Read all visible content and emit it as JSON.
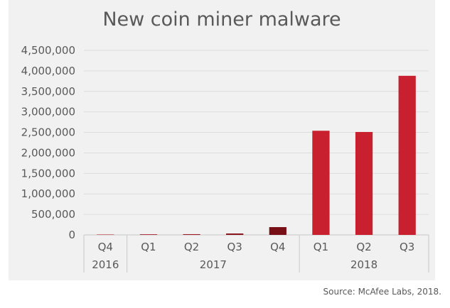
{
  "source": "Source: McAfee Labs, 2018.",
  "chart_data": {
    "type": "bar",
    "title": "New coin miner malware",
    "xlabel": "",
    "ylabel": "",
    "ylim": [
      0,
      4500000
    ],
    "yticks": [
      0,
      500000,
      1000000,
      1500000,
      2000000,
      2500000,
      3000000,
      3500000,
      4000000,
      4500000
    ],
    "ytick_labels": [
      "0",
      "500,000",
      "1,000,000",
      "1,500,000",
      "2,000,000",
      "2,500,000",
      "3,000,000",
      "3,500,000",
      "4,000,000",
      "4,500,000"
    ],
    "categories": [
      "Q4",
      "Q1",
      "Q2",
      "Q3",
      "Q4",
      "Q1",
      "Q2",
      "Q3"
    ],
    "groups": [
      {
        "label": "2016",
        "count": 1
      },
      {
        "label": "2017",
        "count": 4
      },
      {
        "label": "2018",
        "count": 3
      }
    ],
    "values": [
      10000,
      15000,
      18000,
      35000,
      190000,
      2540000,
      2510000,
      3880000
    ],
    "bar_colors": [
      "#b22a30",
      "#a01c24",
      "#9a1a22",
      "#8c161e",
      "#780f16",
      "#c8202f",
      "#c8202f",
      "#c8202f"
    ],
    "grid": true,
    "legend": "none"
  }
}
